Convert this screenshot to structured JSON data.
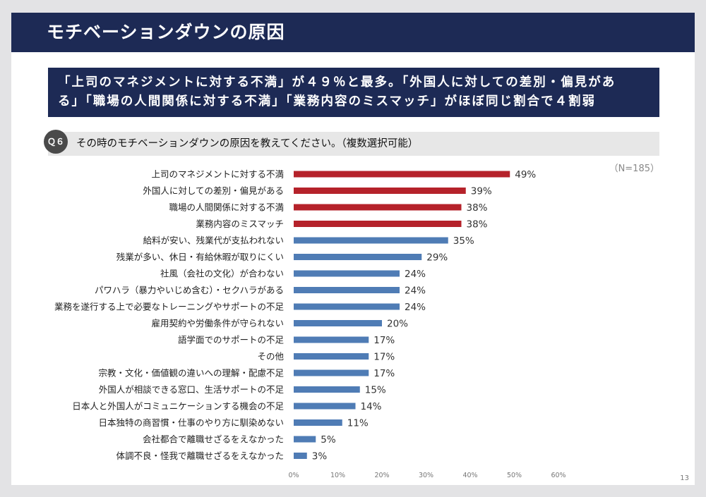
{
  "header": {
    "title": "モチベーションダウンの原因"
  },
  "summary": {
    "line1": "「上司のマネジメントに対する不満」が４９％と最多。「外国人に対しての差別・偏見があ",
    "line2": "る」「職場の人間関係に対する不満」「業務内容のミスマッチ」がほぼ同じ割合で４割弱"
  },
  "question": {
    "badge": "Ｑ６",
    "text": "その時のモチベーションダウンの原因を教えてください。（複数選択可能）"
  },
  "sample_size": "（N=185）",
  "page_number": "13",
  "colors": {
    "title_bg": "#1d2a55",
    "highlight_bar": "#b5222a",
    "default_bar": "#4f7cb5",
    "question_bg": "#e7e7e7"
  },
  "chart_data": {
    "type": "bar",
    "orientation": "horizontal",
    "categories": [
      "上司のマネジメントに対する不満",
      "外国人に対しての差別・偏見がある",
      "職場の人間関係に対する不満",
      "業務内容のミスマッチ",
      "給料が安い、残業代が支払われない",
      "残業が多い、休日・有給休暇が取りにくい",
      "社風（会社の文化）が合わない",
      "パワハラ（暴力やいじめ含む）・セクハラがある",
      "業務を遂行する上で必要なトレーニングやサポートの不足",
      "雇用契約や労働条件が守られない",
      "語学面でのサポートの不足",
      "その他",
      "宗教・文化・価値観の違いへの理解・配慮不足",
      "外国人が相談できる窓口、生活サポートの不足",
      "日本人と外国人がコミュニケーションする機会の不足",
      "日本独特の商習慣・仕事のやり方に馴染めない",
      "会社都合で離職せざるをえなかった",
      "体調不良・怪我で離職せざるをえなかった"
    ],
    "values": [
      49,
      39,
      38,
      38,
      35,
      29,
      24,
      24,
      24,
      20,
      17,
      17,
      17,
      15,
      14,
      11,
      5,
      3
    ],
    "value_labels": [
      "49%",
      "39%",
      "38%",
      "38%",
      "35%",
      "29%",
      "24%",
      "24%",
      "24%",
      "20%",
      "17%",
      "17%",
      "17%",
      "15%",
      "14%",
      "11%",
      "5%",
      "3%"
    ],
    "highlighted": [
      true,
      true,
      true,
      true,
      false,
      false,
      false,
      false,
      false,
      false,
      false,
      false,
      false,
      false,
      false,
      false,
      false,
      false
    ],
    "xlim": [
      0,
      60
    ],
    "ticks": [
      "0%",
      "10%",
      "20%",
      "30%",
      "40%",
      "50%",
      "60%"
    ],
    "grid": false
  }
}
